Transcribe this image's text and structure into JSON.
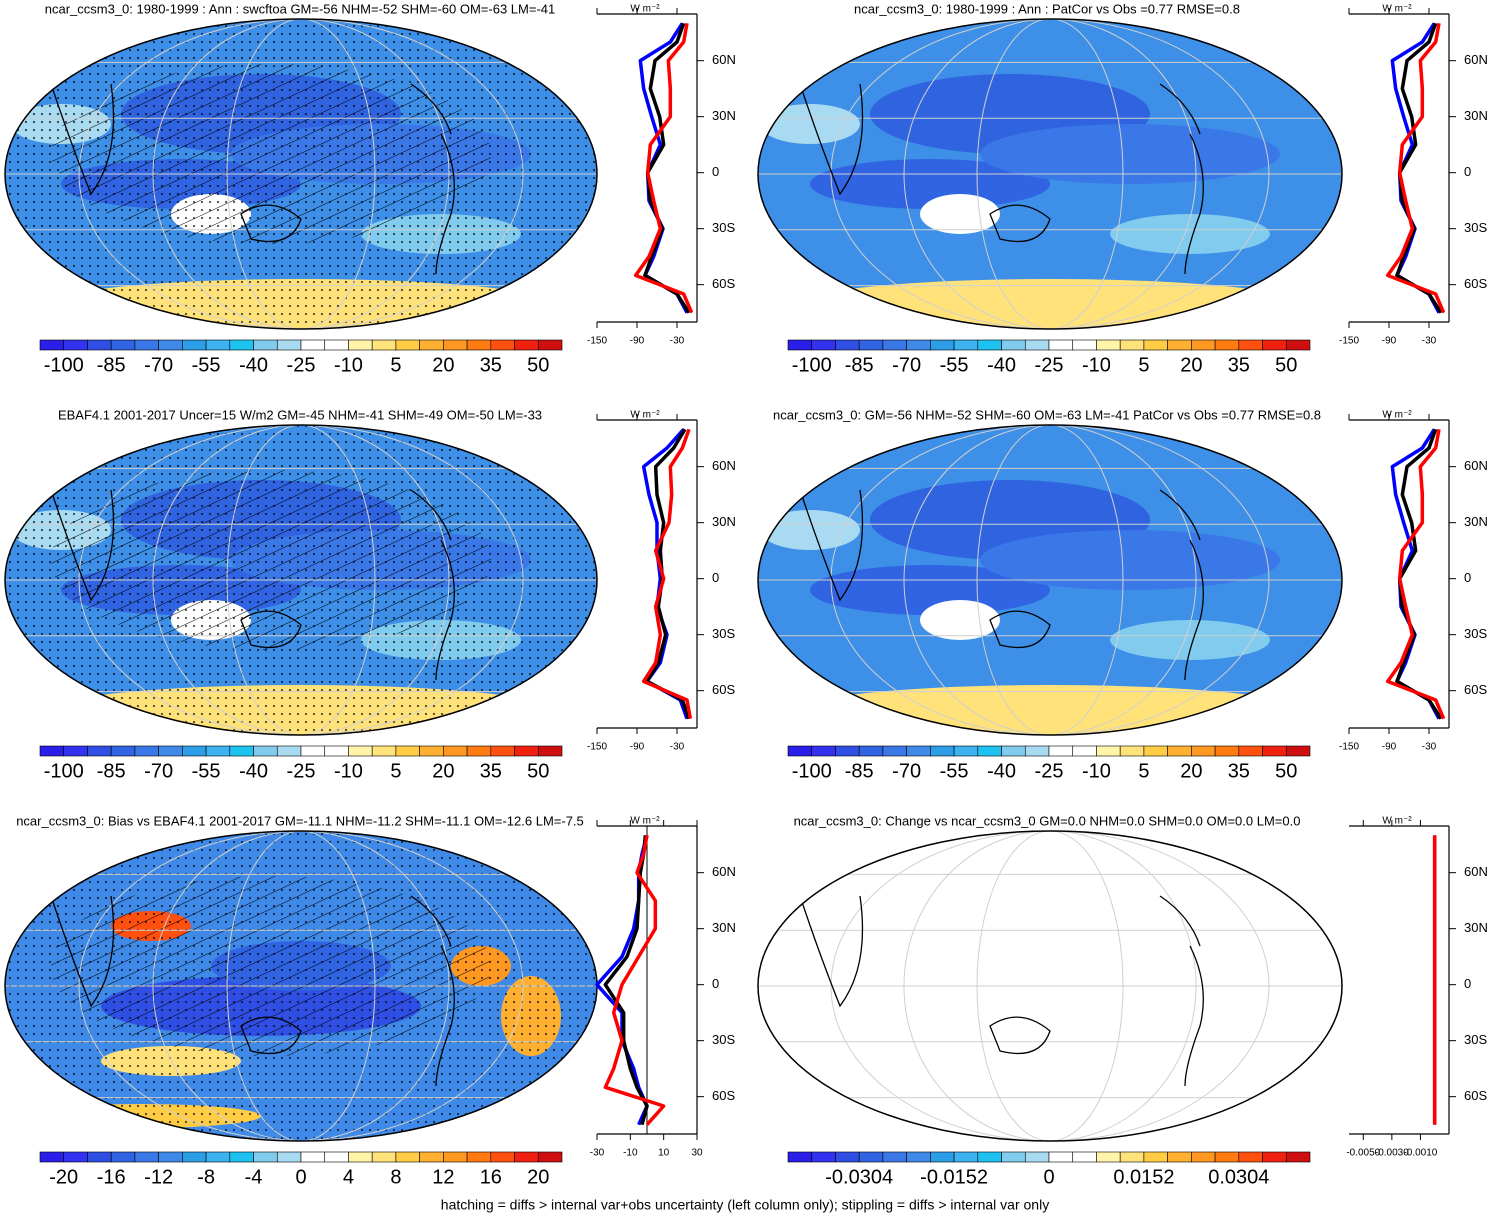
{
  "palette": [
    "#2a1ee8",
    "#3232f0",
    "#2f4fe4",
    "#3064e2",
    "#3a78e8",
    "#3f8ae8",
    "#2c9ee8",
    "#3cb2f0",
    "#1ec2f0",
    "#80cbee",
    "#a8dbf2",
    "#ffffff",
    "#ffffff",
    "#fff4a8",
    "#ffe27a",
    "#ffcc44",
    "#ffb030",
    "#ff9820",
    "#ff7a10",
    "#ff5010",
    "#f02010",
    "#d01010"
  ],
  "chart_data": [
    {
      "type": "map",
      "title": "ncar_ccsm3_0: 1980-1999 : Ann : swcftoa GM=-56 NHM=-52 SHM=-60 OM=-63 LM=-41",
      "colorbar": {
        "ticks": [
          -100,
          -85,
          -70,
          -55,
          -40,
          -25,
          -10,
          5,
          20,
          35,
          50
        ]
      },
      "profile": {
        "type": "line",
        "x_label": "W m⁻²",
        "xlim": [
          -150,
          0
        ],
        "xticks": [
          -150,
          -90,
          -30
        ],
        "ylim": [
          -80,
          85
        ],
        "yticks": [
          {
            "value": 60,
            "label": "60N"
          },
          {
            "value": 30,
            "label": "30N"
          },
          0,
          {
            "value": -30,
            "label": "30S"
          },
          {
            "value": -60,
            "label": "60S"
          }
        ],
        "y": [
          80,
          70,
          60,
          45,
          30,
          15,
          0,
          -15,
          -30,
          -45,
          -55,
          -65,
          -75
        ],
        "series": [
          {
            "color": "#0000ff",
            "values": [
              -22,
              -40,
              -85,
              -80,
              -68,
              -55,
              -74,
              -72,
              -51,
              -65,
              -78,
              -30,
              -15
            ]
          },
          {
            "color": "#000000",
            "values": [
              -20,
              -30,
              -63,
              -70,
              -56,
              -50,
              -74,
              -70,
              -52,
              -68,
              -78,
              -30,
              -12
            ]
          },
          {
            "color": "#ff0000",
            "values": [
              -15,
              -20,
              -43,
              -40,
              -40,
              -70,
              -74,
              -65,
              -55,
              -72,
              -92,
              -20,
              -8
            ]
          }
        ]
      }
    },
    {
      "type": "map",
      "title": "ncar_ccsm3_0: 1980-1999 : Ann : PatCor vs Obs =0.77 RMSE=0.8",
      "colorbar": {
        "ticks": [
          -100,
          -85,
          -70,
          -55,
          -40,
          -25,
          -10,
          5,
          20,
          35,
          50
        ]
      },
      "profile": {
        "type": "line",
        "x_label": "W m⁻²",
        "xlim": [
          -150,
          0
        ],
        "xticks": [
          -150,
          -90,
          -30
        ],
        "ylim": [
          -80,
          85
        ],
        "yticks": [
          {
            "value": 60,
            "label": "60N"
          },
          {
            "value": 30,
            "label": "30N"
          },
          0,
          {
            "value": -30,
            "label": "30S"
          },
          {
            "value": -60,
            "label": "60S"
          }
        ],
        "y": [
          80,
          70,
          60,
          45,
          30,
          15,
          0,
          -15,
          -30,
          -45,
          -55,
          -65,
          -75
        ],
        "series": [
          {
            "color": "#0000ff",
            "values": [
              -22,
              -40,
              -85,
              -80,
              -68,
              -55,
              -74,
              -72,
              -51,
              -65,
              -78,
              -30,
              -15
            ]
          },
          {
            "color": "#000000",
            "values": [
              -20,
              -30,
              -63,
              -70,
              -56,
              -50,
              -74,
              -70,
              -52,
              -68,
              -78,
              -30,
              -12
            ]
          },
          {
            "color": "#ff0000",
            "values": [
              -15,
              -20,
              -43,
              -40,
              -40,
              -70,
              -74,
              -65,
              -55,
              -72,
              -92,
              -20,
              -8
            ]
          }
        ]
      }
    },
    {
      "type": "map",
      "title": "EBAF4.1 2001-2017 Uncer=15 W/m2 GM=-45 NHM=-41 SHM=-49 OM=-50 LM=-33",
      "colorbar": {
        "ticks": [
          -100,
          -85,
          -70,
          -55,
          -40,
          -25,
          -10,
          5,
          20,
          35,
          50
        ]
      },
      "profile": {
        "type": "line",
        "x_label": "W m⁻²",
        "xlim": [
          -150,
          0
        ],
        "xticks": [
          -150,
          -90,
          -30
        ],
        "ylim": [
          -80,
          85
        ],
        "yticks": [
          {
            "value": 60,
            "label": "60N"
          },
          {
            "value": 30,
            "label": "30N"
          },
          0,
          {
            "value": -30,
            "label": "30S"
          },
          {
            "value": -60,
            "label": "60S"
          }
        ],
        "y": [
          80,
          70,
          60,
          45,
          30,
          15,
          0,
          -15,
          -30,
          -45,
          -55,
          -65,
          -75
        ],
        "series": [
          {
            "color": "#0000ff",
            "values": [
              -20,
              -45,
              -80,
              -72,
              -60,
              -60,
              -55,
              -60,
              -45,
              -55,
              -75,
              -25,
              -15
            ]
          },
          {
            "color": "#000000",
            "values": [
              -18,
              -35,
              -62,
              -60,
              -50,
              -55,
              -52,
              -58,
              -47,
              -58,
              -75,
              -22,
              -12
            ]
          },
          {
            "color": "#ff0000",
            "values": [
              -12,
              -22,
              -40,
              -38,
              -42,
              -62,
              -50,
              -62,
              -55,
              -62,
              -80,
              -15,
              -10
            ]
          }
        ]
      }
    },
    {
      "type": "map",
      "title": "ncar_ccsm3_0: GM=-56 NHM=-52 SHM=-60 OM=-63 LM=-41 PatCor vs Obs =0.77 RMSE=0.8",
      "colorbar": {
        "ticks": [
          -100,
          -85,
          -70,
          -55,
          -40,
          -25,
          -10,
          5,
          20,
          35,
          50
        ]
      },
      "profile": {
        "type": "line",
        "x_label": "W m⁻²",
        "xlim": [
          -150,
          0
        ],
        "xticks": [
          -150,
          -90,
          -30
        ],
        "ylim": [
          -80,
          85
        ],
        "yticks": [
          {
            "value": 60,
            "label": "60N"
          },
          {
            "value": 30,
            "label": "30N"
          },
          0,
          {
            "value": -30,
            "label": "30S"
          },
          {
            "value": -60,
            "label": "60S"
          }
        ],
        "y": [
          80,
          70,
          60,
          45,
          30,
          15,
          0,
          -15,
          -30,
          -45,
          -55,
          -65,
          -75
        ],
        "series": [
          {
            "color": "#0000ff",
            "values": [
              -22,
              -40,
              -85,
              -80,
              -68,
              -55,
              -74,
              -72,
              -51,
              -65,
              -78,
              -30,
              -15
            ]
          },
          {
            "color": "#000000",
            "values": [
              -20,
              -30,
              -63,
              -70,
              -56,
              -50,
              -74,
              -70,
              -52,
              -68,
              -78,
              -30,
              -12
            ]
          },
          {
            "color": "#ff0000",
            "values": [
              -15,
              -20,
              -43,
              -40,
              -40,
              -70,
              -74,
              -65,
              -55,
              -72,
              -92,
              -20,
              -8
            ]
          }
        ]
      }
    },
    {
      "type": "map",
      "title": "ncar_ccsm3_0: Bias vs EBAF4.1 2001-2017 GM=-11.1 NHM=-11.2 SHM=-11.1 OM=-12.6 LM=-7.5",
      "colorbar": {
        "ticks": [
          -20,
          -16,
          -12,
          -8,
          -4,
          0,
          4,
          8,
          12,
          16,
          20
        ]
      },
      "profile": {
        "type": "line",
        "x_label": "W m⁻²",
        "xlim": [
          -30,
          30
        ],
        "xticks": [
          -30,
          -10,
          10,
          30
        ],
        "ylim": [
          -80,
          85
        ],
        "yticks": [
          {
            "value": 60,
            "label": "60N"
          },
          {
            "value": 30,
            "label": "30N"
          },
          0,
          {
            "value": -30,
            "label": "30S"
          },
          {
            "value": -60,
            "label": "60S"
          }
        ],
        "y": [
          80,
          70,
          60,
          45,
          30,
          15,
          0,
          -15,
          -30,
          -45,
          -55,
          -65,
          -75
        ],
        "series": [
          {
            "color": "#0000ff",
            "values": [
              0,
              -3,
              -5,
              -5,
              -8,
              -15,
              -30,
              -15,
              -15,
              -8,
              -5,
              0,
              -5
            ]
          },
          {
            "color": "#000000",
            "values": [
              -1,
              -2,
              -4,
              -5,
              -6,
              -12,
              -25,
              -14,
              -14,
              -10,
              -6,
              0,
              -3
            ]
          },
          {
            "color": "#ff0000",
            "values": [
              0,
              -2,
              -6,
              5,
              5,
              -5,
              -15,
              -20,
              -15,
              -20,
              -25,
              10,
              0
            ]
          }
        ]
      }
    },
    {
      "type": "map",
      "title": "ncar_ccsm3_0: Change vs ncar_ccsm3_0 GM=0.0 NHM=0.0 SHM=0.0 OM=0.0 LM=0.0",
      "colorbar": {
        "ticks": [
          -0.0304,
          -0.0152,
          0,
          0.0152,
          0.0304
        ]
      },
      "profile": {
        "type": "line",
        "x_label": "W m⁻²",
        "xlim": [
          -0.006,
          0.001
        ],
        "xticks": [
          {
            "value": -0.005,
            "label": "-0.0050"
          },
          {
            "value": -0.003,
            "label": "-0.0030"
          },
          {
            "value": -0.001,
            "label": "-0.0010"
          }
        ],
        "ylim": [
          -80,
          85
        ],
        "yticks": [
          {
            "value": 60,
            "label": "60N"
          },
          {
            "value": 30,
            "label": "30N"
          },
          0,
          {
            "value": -30,
            "label": "30S"
          },
          {
            "value": -60,
            "label": "60S"
          }
        ],
        "y": [
          80,
          70,
          60,
          45,
          30,
          15,
          0,
          -15,
          -30,
          -45,
          -55,
          -65,
          -75
        ],
        "series": [
          {
            "color": "#0000ff",
            "values": [
              0,
              0,
              0,
              0,
              0,
              0,
              0,
              0,
              0,
              0,
              0,
              0,
              0
            ]
          },
          {
            "color": "#000000",
            "values": [
              0,
              0,
              0,
              0,
              0,
              0,
              0,
              0,
              0,
              0,
              0,
              0,
              0
            ]
          },
          {
            "color": "#ff0000",
            "values": [
              0,
              0,
              0,
              0,
              0,
              0,
              0,
              0,
              0,
              0,
              0,
              0,
              0
            ]
          }
        ]
      }
    }
  ],
  "footer": "hatching = diffs > internal var+obs uncertainty (left column only); stippling = diffs > internal var only"
}
